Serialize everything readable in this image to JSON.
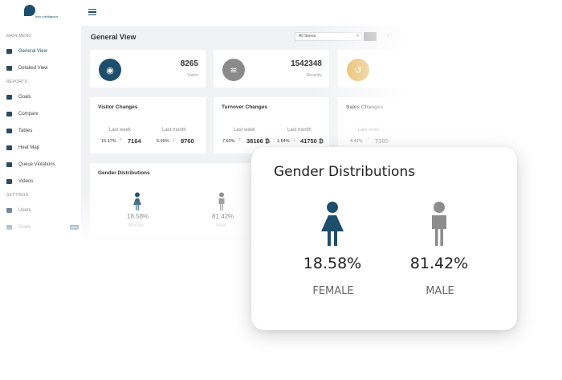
{
  "app": {
    "logo_text": "iseo intelligence"
  },
  "sidebar": {
    "sections": [
      {
        "label": "MAIN MENU"
      },
      {
        "label": "REPORTS"
      },
      {
        "label": "SETTINGS"
      }
    ],
    "items": [
      {
        "label": "General View",
        "icon": "monitor-icon"
      },
      {
        "label": "Detailed View",
        "icon": "map-icon"
      },
      {
        "label": "Goals",
        "icon": "goals-icon"
      },
      {
        "label": "Compare",
        "icon": "compare-icon"
      },
      {
        "label": "Tables",
        "icon": "table-icon"
      },
      {
        "label": "Heat Map",
        "icon": "heatmap-icon"
      },
      {
        "label": "Queue Violations",
        "icon": "queue-icon"
      },
      {
        "label": "Videos",
        "icon": "video-icon"
      },
      {
        "label": "Users",
        "icon": "users-icon"
      },
      {
        "label": "Goals",
        "icon": "goals-icon",
        "badge": "New"
      }
    ]
  },
  "main": {
    "title": "General View",
    "store_select": "All Stores",
    "extra": "8 ‹"
  },
  "stats": [
    {
      "value": "8265",
      "label": "Visitor",
      "icon": "eye-icon",
      "color": "#1d4e6b"
    },
    {
      "value": "1542348",
      "label": "Recently",
      "icon": "wifi-icon",
      "color": "#8a8a8a"
    },
    {
      "value": "",
      "label": "",
      "icon": "refresh-icon",
      "color": "#e0a73a"
    }
  ],
  "changes": [
    {
      "title": "Visitor Changes",
      "last_week_label": "Last week",
      "last_month_label": "Last month",
      "lw_pct": "15.37%",
      "lw_arrow": "↑",
      "lw_val": "7164",
      "lm_pct": "5.99%",
      "lm_arrow": "↓",
      "lm_val": "8760"
    },
    {
      "title": "Turnover Changes",
      "last_week_label": "Last week",
      "last_month_label": "Last month",
      "lw_pct": "7.63%",
      "lw_arrow": "↑",
      "lw_val": "38166 ₿",
      "lm_pct": "1.64%",
      "lm_arrow": "↓",
      "lm_val": "41750 ₿"
    },
    {
      "title": "Sales Changes",
      "last_week_label": "Last week",
      "lw_pct": "4.42%",
      "lw_arrow": "↑",
      "lw_val": "7395"
    }
  ],
  "gender_small": {
    "title": "Gender Distributions",
    "female_pct": "18.58%",
    "female_label": "Woman",
    "male_pct": "81.42%",
    "male_label": "Male"
  },
  "popup": {
    "title": "Gender Distributions",
    "female_pct": "18.58%",
    "female_label": "FEMALE",
    "female_color": "#1d4e6b",
    "male_pct": "81.42%",
    "male_label": "MALE",
    "male_color": "#8c8c8c"
  }
}
